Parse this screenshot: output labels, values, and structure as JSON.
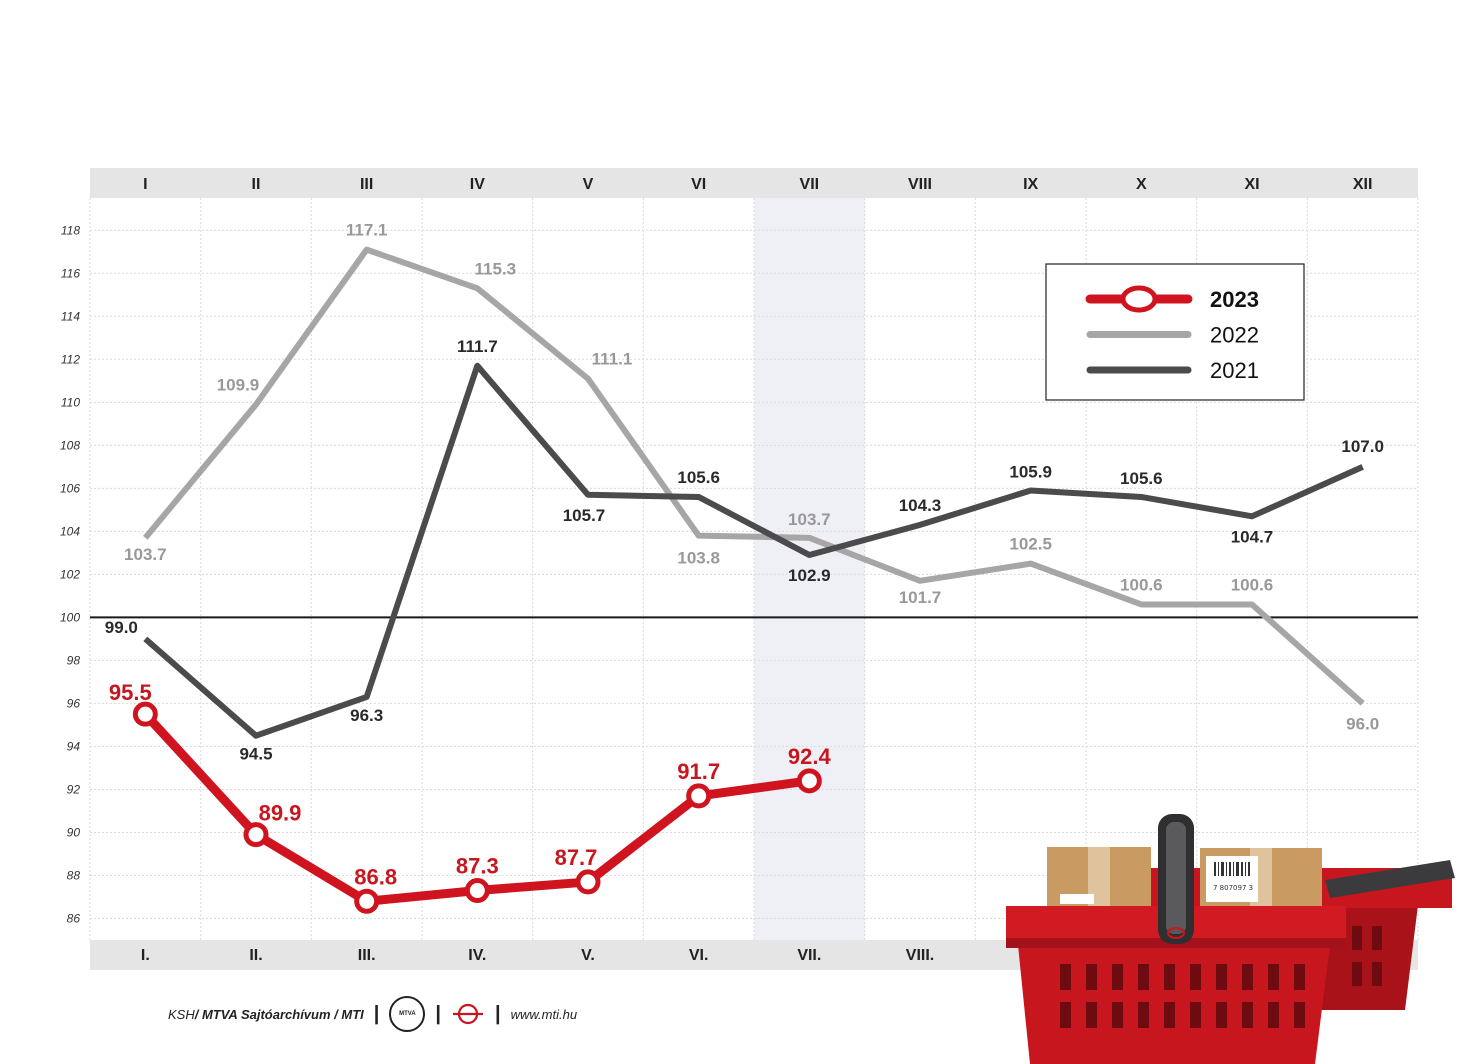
{
  "chart_data": {
    "type": "line",
    "categories_top": [
      "I",
      "II",
      "III",
      "IV",
      "V",
      "VI",
      "VII",
      "VIII",
      "IX",
      "X",
      "XI",
      "XII"
    ],
    "categories_bottom": [
      "I.",
      "II.",
      "III.",
      "IV.",
      "V.",
      "VI.",
      "VII.",
      "VIII."
    ],
    "y_ticks": [
      "118",
      "116",
      "114",
      "112",
      "110",
      "108",
      "106",
      "104",
      "102",
      "100",
      "98",
      "96",
      "94",
      "92",
      "90",
      "88",
      "86"
    ],
    "ylim": [
      85,
      119.5
    ],
    "reference_line": 100,
    "highlight_category": "VII",
    "grid": true,
    "legend_position": "top-right",
    "series": [
      {
        "name": "2022",
        "color": "#a7a5a6",
        "values": [
          103.7,
          109.9,
          117.1,
          115.3,
          111.1,
          103.8,
          103.7,
          101.7,
          102.5,
          100.6,
          100.6,
          96.0
        ],
        "labels": [
          "103.7",
          "109.9",
          "117.1",
          "115.3",
          "111.1",
          "103.8",
          "103.7",
          "101.7",
          "102.5",
          "100.6",
          "100.6",
          "96.0"
        ]
      },
      {
        "name": "2021",
        "color": "#4b4a4c",
        "values": [
          99.0,
          94.5,
          96.3,
          111.7,
          105.7,
          105.6,
          102.9,
          104.3,
          105.9,
          105.6,
          104.7,
          107.0
        ],
        "labels": [
          "99.0",
          "94.5",
          "96.3",
          "111.7",
          "105.7",
          "105.6",
          "102.9",
          "104.3",
          "105.9",
          "105.6",
          "104.7",
          "107.0"
        ]
      },
      {
        "name": "2023",
        "color": "#d0141f",
        "values": [
          95.5,
          89.9,
          86.8,
          87.3,
          87.7,
          91.7,
          92.4
        ],
        "labels": [
          "95.5",
          "89.9",
          "86.8",
          "87.3",
          "87.7",
          "91.7",
          "92.4"
        ]
      }
    ]
  },
  "footer": {
    "source_prefix": "KSH",
    "source_main": " / MTVA Sajtóarchívum / MTI",
    "separator": "|",
    "mtva_logo_text": "MTVA",
    "url": "www.mti.hu"
  },
  "illustration": {
    "icon": "shopping-basket-icon",
    "basket_color": "#c8161e",
    "barcode_text": "7 807097 3"
  }
}
